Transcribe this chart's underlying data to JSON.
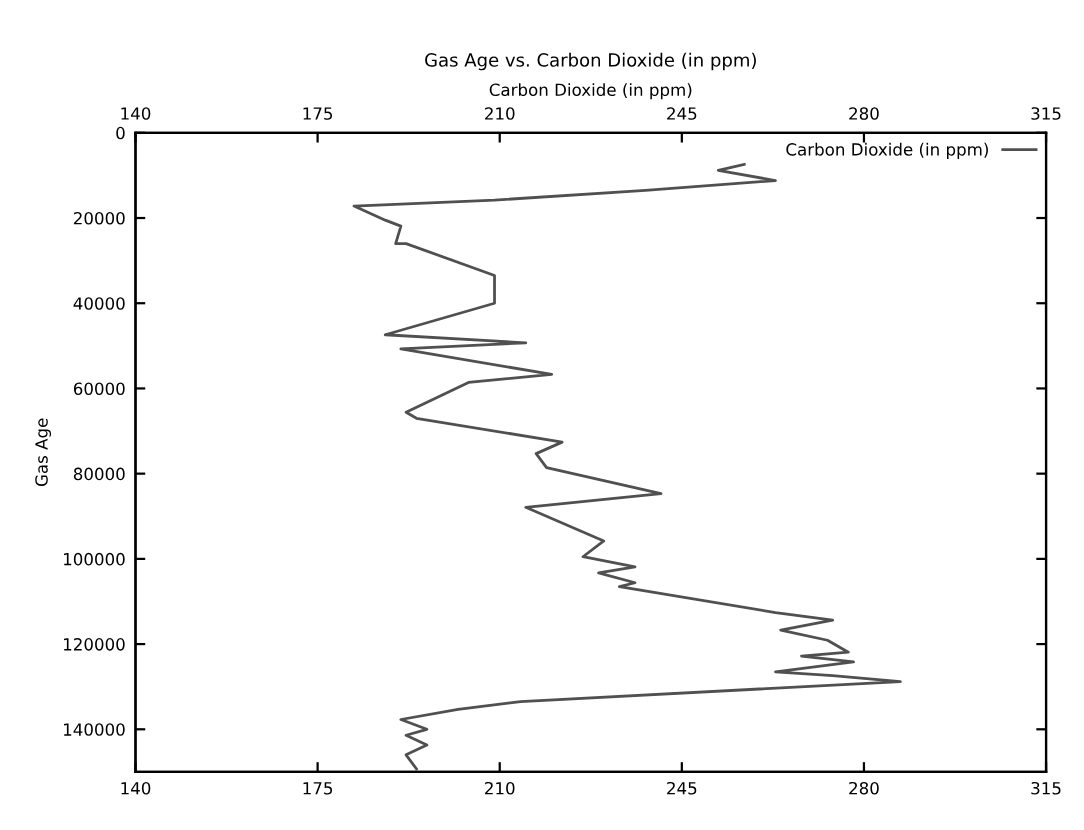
{
  "chart_data": {
    "type": "line",
    "title": "Gas Age vs. Carbon Dioxide (in ppm)",
    "x2label": "Carbon Dioxide (in ppm)",
    "ylabel": "Gas Age",
    "xlim": [
      140,
      315
    ],
    "xticks": [
      140,
      175,
      210,
      245,
      280,
      315
    ],
    "x2lim": [
      140,
      315
    ],
    "x2ticks": [
      140,
      175,
      210,
      245,
      280,
      315
    ],
    "ylim": [
      150000,
      0
    ],
    "yticks": [
      0,
      20000,
      40000,
      60000,
      80000,
      100000,
      120000,
      140000
    ],
    "legend": "top right",
    "grid": false,
    "series": [
      {
        "name": "Carbon Dioxide (in ppm)",
        "color": "#505050",
        "x": [
          257,
          252,
          263,
          238,
          209,
          182,
          188,
          191,
          190,
          192,
          209,
          209,
          188,
          215,
          191,
          220,
          204,
          192,
          194,
          222,
          217,
          219,
          241,
          215,
          230,
          226,
          236,
          229,
          236,
          233,
          263,
          274,
          264,
          273,
          277,
          268,
          278,
          263,
          274,
          287,
          214,
          202,
          191,
          196,
          192,
          196,
          192,
          194
        ],
        "values": [
          7400,
          8800,
          11200,
          13500,
          15800,
          17200,
          20500,
          21900,
          26000,
          26000,
          33500,
          40000,
          47400,
          49300,
          50700,
          56700,
          58600,
          65600,
          67000,
          72600,
          75300,
          78600,
          84700,
          87900,
          95800,
          99500,
          101900,
          103300,
          105600,
          106500,
          112600,
          114400,
          116700,
          119100,
          121900,
          122800,
          124200,
          126500,
          127400,
          128800,
          133500,
          135300,
          137700,
          140000,
          141400,
          143700,
          146000,
          149300
        ]
      }
    ]
  }
}
